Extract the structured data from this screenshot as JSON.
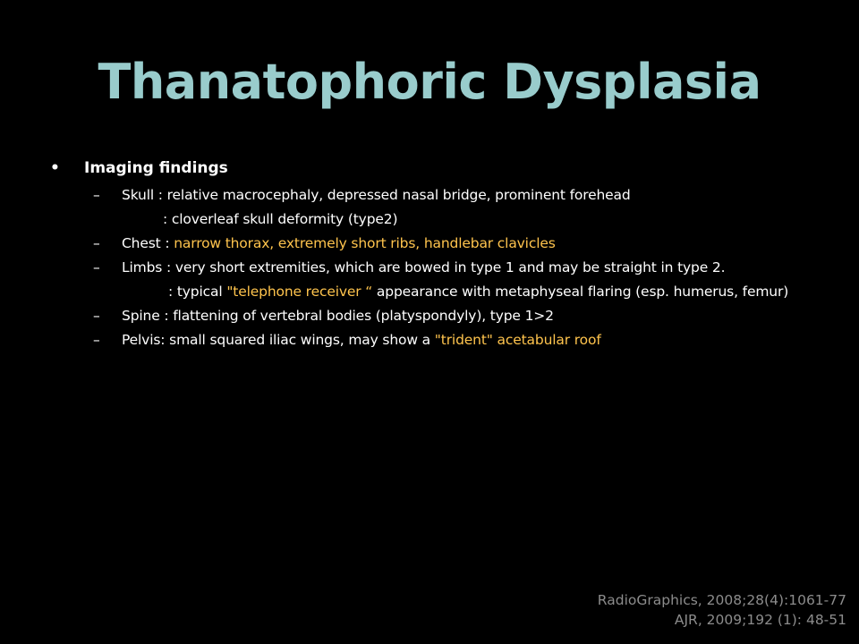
{
  "slide": {
    "title": "Thanatophoric Dysplasia",
    "bullet_glyph": "•",
    "dash_glyph": "–",
    "heading": "Imaging findings",
    "skull": {
      "label": "Skull : ",
      "text": "relative macrocephaly, depressed nasal bridge, prominent forehead",
      "continuation": ": cloverleaf skull deformity (type2)"
    },
    "chest": {
      "label": "Chest : ",
      "highlight": "narrow thorax, extremely short ribs, handlebar clavicles"
    },
    "limbs": {
      "label": "Limbs : ",
      "text": "very short extremities, which are bowed in type 1 and may be straight in type 2.",
      "cont_prefix": ": typical ",
      "cont_highlight": "\"telephone receiver “",
      "cont_suffix": " appearance with metaphyseal flaring (esp. humerus, femur)"
    },
    "spine": {
      "label": "Spine : ",
      "text": "flattening of vertebral bodies (platyspondyly), type 1>2"
    },
    "pelvis": {
      "label": "Pelvis: ",
      "text": "small squared iliac wings, may show a ",
      "highlight": "\"trident\" acetabular roof"
    },
    "references": [
      "RadioGraphics, 2008;28(4):1061-77",
      "AJR, 2009;192 (1): 48-51"
    ]
  },
  "colors": {
    "background": "#000000",
    "title": "#99cccc",
    "text": "#ffffff",
    "highlight": "#ffc44d",
    "references": "#8c8c8c"
  }
}
